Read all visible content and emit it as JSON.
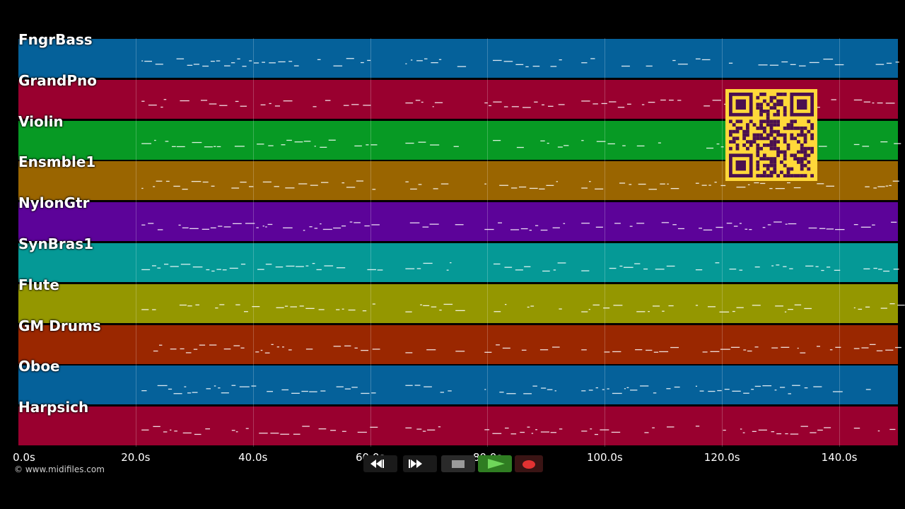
{
  "tracks": [
    {
      "name": "FngrBass",
      "color": "#05619a"
    },
    {
      "name": "GrandPno",
      "color": "#99002f"
    },
    {
      "name": "Violin",
      "color": "#079a24"
    },
    {
      "name": "Ensmble1",
      "color": "#9a6500"
    },
    {
      "name": "NylonGtr",
      "color": "#5c0399"
    },
    {
      "name": "SynBras1",
      "color": "#059996"
    },
    {
      "name": "Flute",
      "color": "#949700"
    },
    {
      "name": "GM Drums",
      "color": "#9a2700"
    },
    {
      "name": "Oboe",
      "color": "#05619a"
    },
    {
      "name": "Harpsich",
      "color": "#99002f"
    }
  ],
  "timeline": {
    "unit": "s",
    "max_seconds": 150,
    "tick_labels": [
      "0.0s",
      "20.0s",
      "40.0s",
      "60.0s",
      "80.0s",
      "100.0s",
      "120.0s",
      "140.0s"
    ],
    "tick_values": [
      0,
      20,
      40,
      60,
      80,
      100,
      120,
      140
    ]
  },
  "copyright": "© www.midifiles.com",
  "transport": {
    "rewind": "rewind-icon",
    "fast_forward": "fast-forward-icon",
    "stop": "stop-icon",
    "play": "play-icon",
    "record": "record-icon",
    "play_color": "#2f7d22",
    "record_color": "#e23232"
  },
  "qr_color": "#ffd83a",
  "qr_dark_color": "#4a1050"
}
